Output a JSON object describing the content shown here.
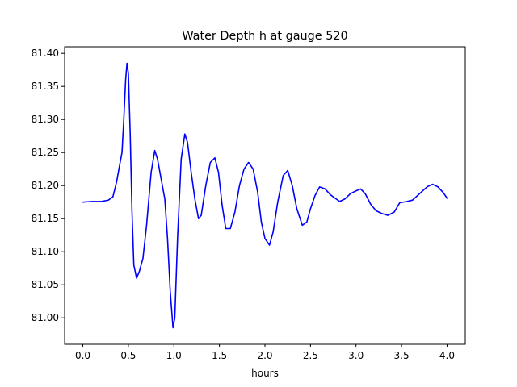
{
  "chart_data": {
    "type": "line",
    "title": "Water Depth h at gauge 520",
    "xlabel": "hours",
    "ylabel": "",
    "xlim": [
      -0.2,
      4.2
    ],
    "ylim": [
      80.96,
      81.41
    ],
    "x_ticks": [
      0.0,
      0.5,
      1.0,
      1.5,
      2.0,
      2.5,
      3.0,
      3.5,
      4.0
    ],
    "x_tick_labels": [
      "0.0",
      "0.5",
      "1.0",
      "1.5",
      "2.0",
      "2.5",
      "3.0",
      "3.5",
      "4.0"
    ],
    "y_ticks": [
      81.0,
      81.05,
      81.1,
      81.15,
      81.2,
      81.25,
      81.3,
      81.35,
      81.4
    ],
    "y_tick_labels": [
      "81.00",
      "81.05",
      "81.10",
      "81.15",
      "81.20",
      "81.25",
      "81.30",
      "81.35",
      "81.40"
    ],
    "grid": false,
    "legend": "none",
    "series": [
      {
        "color": "#0000ff",
        "points": [
          [
            0.0,
            81.175
          ],
          [
            0.1,
            81.176
          ],
          [
            0.2,
            81.176
          ],
          [
            0.28,
            81.178
          ],
          [
            0.33,
            81.183
          ],
          [
            0.37,
            81.205
          ],
          [
            0.4,
            81.228
          ],
          [
            0.43,
            81.25
          ],
          [
            0.45,
            81.3
          ],
          [
            0.47,
            81.36
          ],
          [
            0.485,
            81.385
          ],
          [
            0.5,
            81.37
          ],
          [
            0.52,
            81.28
          ],
          [
            0.54,
            81.16
          ],
          [
            0.56,
            81.08
          ],
          [
            0.59,
            81.06
          ],
          [
            0.62,
            81.07
          ],
          [
            0.66,
            81.09
          ],
          [
            0.7,
            81.14
          ],
          [
            0.75,
            81.22
          ],
          [
            0.79,
            81.253
          ],
          [
            0.82,
            81.24
          ],
          [
            0.86,
            81.21
          ],
          [
            0.9,
            81.18
          ],
          [
            0.93,
            81.12
          ],
          [
            0.96,
            81.04
          ],
          [
            0.99,
            80.985
          ],
          [
            1.01,
            81.0
          ],
          [
            1.04,
            81.12
          ],
          [
            1.08,
            81.24
          ],
          [
            1.12,
            81.278
          ],
          [
            1.15,
            81.265
          ],
          [
            1.19,
            81.22
          ],
          [
            1.23,
            81.18
          ],
          [
            1.27,
            81.15
          ],
          [
            1.3,
            81.155
          ],
          [
            1.35,
            81.2
          ],
          [
            1.4,
            81.235
          ],
          [
            1.45,
            81.242
          ],
          [
            1.49,
            81.22
          ],
          [
            1.53,
            81.17
          ],
          [
            1.57,
            81.135
          ],
          [
            1.62,
            81.135
          ],
          [
            1.67,
            81.16
          ],
          [
            1.72,
            81.2
          ],
          [
            1.77,
            81.225
          ],
          [
            1.82,
            81.235
          ],
          [
            1.87,
            81.225
          ],
          [
            1.92,
            81.19
          ],
          [
            1.96,
            81.145
          ],
          [
            2.0,
            81.12
          ],
          [
            2.05,
            81.11
          ],
          [
            2.09,
            81.13
          ],
          [
            2.14,
            81.175
          ],
          [
            2.2,
            81.215
          ],
          [
            2.25,
            81.223
          ],
          [
            2.3,
            81.2
          ],
          [
            2.35,
            81.165
          ],
          [
            2.41,
            81.14
          ],
          [
            2.46,
            81.145
          ],
          [
            2.5,
            81.165
          ],
          [
            2.55,
            81.185
          ],
          [
            2.6,
            81.198
          ],
          [
            2.66,
            81.195
          ],
          [
            2.72,
            81.186
          ],
          [
            2.78,
            81.18
          ],
          [
            2.82,
            81.176
          ],
          [
            2.88,
            81.18
          ],
          [
            2.94,
            81.188
          ],
          [
            3.0,
            81.192
          ],
          [
            3.05,
            81.195
          ],
          [
            3.1,
            81.188
          ],
          [
            3.16,
            81.172
          ],
          [
            3.22,
            81.162
          ],
          [
            3.28,
            81.158
          ],
          [
            3.35,
            81.155
          ],
          [
            3.42,
            81.16
          ],
          [
            3.48,
            81.174
          ],
          [
            3.56,
            81.176
          ],
          [
            3.62,
            81.178
          ],
          [
            3.7,
            81.188
          ],
          [
            3.78,
            81.198
          ],
          [
            3.84,
            81.202
          ],
          [
            3.9,
            81.198
          ],
          [
            3.96,
            81.189
          ],
          [
            4.0,
            81.181
          ]
        ]
      }
    ]
  }
}
